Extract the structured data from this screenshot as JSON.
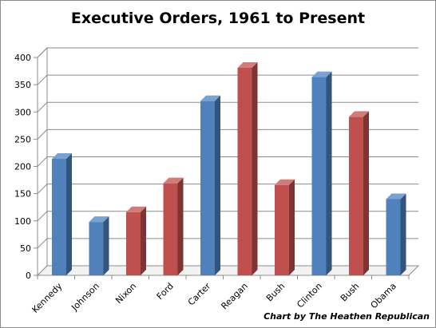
{
  "title": "Executive Orders, 1961 to Present",
  "credit": "Chart by The Heathen Republican",
  "colors": {
    "democrat": "#4f81bd",
    "republican": "#c0504d"
  },
  "chart_data": {
    "type": "bar",
    "title": "Executive Orders, 1961 to Present",
    "xlabel": "",
    "ylabel": "",
    "ylim": [
      0,
      400
    ],
    "yticks": [
      0,
      50,
      100,
      150,
      200,
      250,
      300,
      350,
      400
    ],
    "grid": true,
    "legend": "none",
    "style": "3d-column",
    "categories": [
      "Kennedy",
      "Johnson",
      "Nixon",
      "Ford",
      "Carter",
      "Reagan",
      "Bush",
      "Clinton",
      "Bush",
      "Obama"
    ],
    "values": [
      214,
      98,
      116,
      169,
      320,
      381,
      166,
      364,
      291,
      140
    ],
    "party": [
      "democrat",
      "democrat",
      "republican",
      "republican",
      "democrat",
      "republican",
      "republican",
      "democrat",
      "republican",
      "democrat"
    ]
  }
}
